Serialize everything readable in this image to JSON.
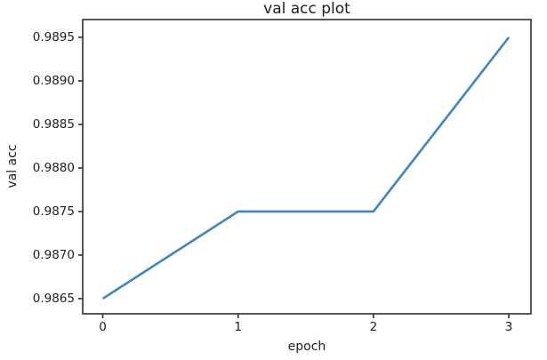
{
  "chart_data": {
    "type": "line",
    "title": "val acc plot",
    "xlabel": "epoch",
    "ylabel": "val acc",
    "x": [
      0,
      1,
      2,
      3
    ],
    "y": [
      0.9865,
      0.9875,
      0.9875,
      0.9895
    ],
    "xticks": [
      0,
      1,
      2,
      3
    ],
    "xtick_labels": [
      "0",
      "1",
      "2",
      "3"
    ],
    "yticks": [
      0.9865,
      0.987,
      0.9875,
      0.988,
      0.9885,
      0.989,
      0.9895
    ],
    "ytick_labels": [
      "0.9865",
      "0.9870",
      "0.9875",
      "0.9880",
      "0.9885",
      "0.9890",
      "0.9895"
    ],
    "xlim": [
      -0.148,
      3.164
    ],
    "ylim": [
      0.986326,
      0.989704
    ],
    "grid": false,
    "legend": "none",
    "markers": "none",
    "colors": {
      "line": "#3d85c4",
      "axis": "#2e2e2e",
      "text": "#1d1d1d",
      "background": "#ffffff"
    }
  }
}
